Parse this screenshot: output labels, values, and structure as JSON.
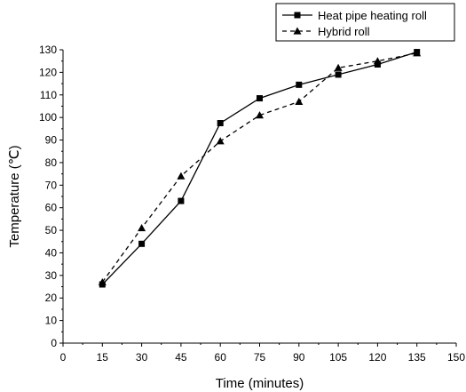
{
  "chart_data": {
    "type": "line",
    "xlabel": "Time (minutes)",
    "ylabel": "Temperature (℃)",
    "xlim": [
      0,
      150
    ],
    "ylim": [
      0,
      130
    ],
    "xticks": [
      0,
      15,
      30,
      45,
      60,
      75,
      90,
      105,
      120,
      135,
      150
    ],
    "yticks": [
      0,
      10,
      20,
      30,
      40,
      50,
      60,
      70,
      80,
      90,
      100,
      110,
      120,
      130
    ],
    "grid": false,
    "legend_position": "top-right",
    "series": [
      {
        "name": "Heat pipe heating roll",
        "marker": "square",
        "line_style": "solid",
        "color": "#000000",
        "x": [
          15,
          30,
          45,
          60,
          75,
          90,
          105,
          120,
          135
        ],
        "y": [
          26,
          44,
          63,
          97.5,
          108.5,
          114.5,
          119,
          123.5,
          129
        ]
      },
      {
        "name": "Hybrid roll",
        "marker": "triangle",
        "line_style": "dashed",
        "color": "#000000",
        "x": [
          15,
          30,
          45,
          60,
          75,
          90,
          105,
          120,
          135
        ],
        "y": [
          27,
          51,
          74,
          89.5,
          101,
          107,
          122,
          125,
          128.5
        ]
      }
    ]
  }
}
